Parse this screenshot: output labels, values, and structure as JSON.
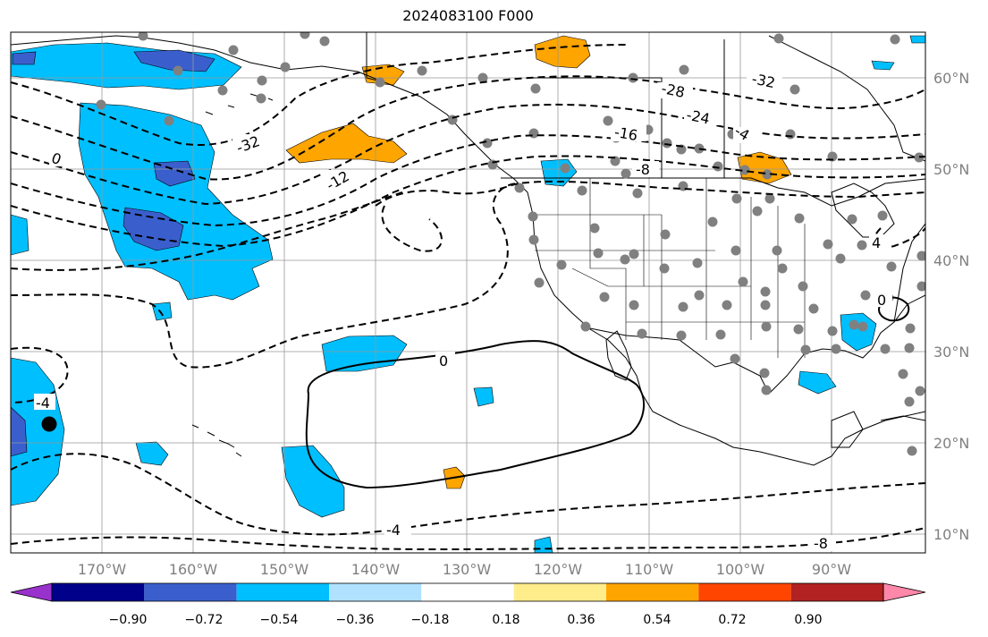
{
  "title": "2024083100 F000",
  "map": {
    "lat_labels": [
      "60°N",
      "50°N",
      "40°N",
      "30°N",
      "20°N",
      "10°N"
    ],
    "lon_labels": [
      "170°W",
      "160°W",
      "150°W",
      "140°W",
      "130°W",
      "120°W",
      "110°W",
      "100°W",
      "90°W"
    ],
    "contour_labels": [
      "-32",
      "-28",
      "-24",
      "-16",
      "-8",
      "-32",
      "-12",
      "0",
      "-4",
      "0",
      "4",
      "-4",
      "-8",
      "-4",
      "0"
    ]
  },
  "colorbar": {
    "ticks": [
      "−0.90",
      "−0.72",
      "−0.54",
      "−0.36",
      "−0.18",
      "0.18",
      "0.36",
      "0.54",
      "0.72",
      "0.90"
    ],
    "colors": [
      "#9932CC",
      "#00008B",
      "#3A5FCD",
      "#00BFFF",
      "#B0E2FF",
      "#FFFFFF",
      "#FFEC8B",
      "#FFA500",
      "#FF4500",
      "#B22222",
      "#FF88AA"
    ]
  },
  "colors": {
    "grid": "#999999",
    "label": "#808080",
    "station": "#808080"
  }
}
